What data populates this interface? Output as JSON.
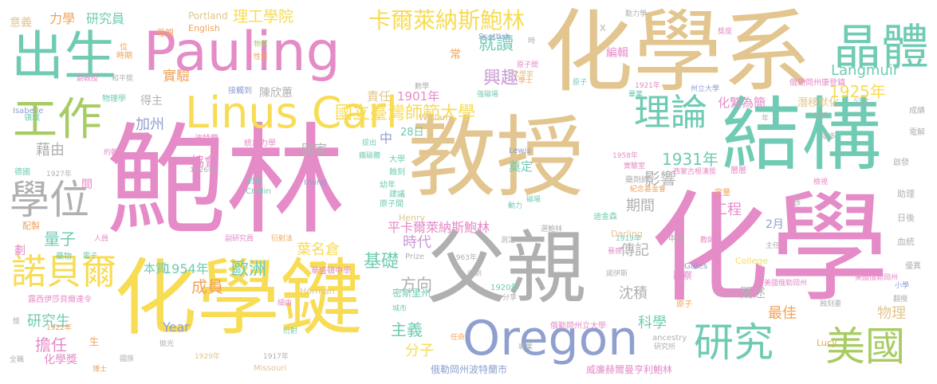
{
  "palette": {
    "pink": "#e58bc7",
    "tan": "#e2c58f",
    "green": "#7fcc8e",
    "yellow": "#f7dc54",
    "gray": "#b0b0b0",
    "blue": "#8fa0cf",
    "teal": "#6fcbb3",
    "lime": "#a8cc63",
    "orange": "#f1a25a",
    "purple": "#c99ad6"
  },
  "words": [
    {
      "text": "鮑林",
      "color": "pink"
    },
    {
      "text": "化學",
      "color": "pink"
    },
    {
      "text": "教授",
      "color": "tan"
    },
    {
      "text": "化學系",
      "color": "tan"
    },
    {
      "text": "結構",
      "color": "teal"
    },
    {
      "text": "父親",
      "color": "gray"
    },
    {
      "text": "化學鍵",
      "color": "yellow"
    },
    {
      "text": "Pauling",
      "color": "pink"
    },
    {
      "text": "Linus Carl",
      "color": "yellow"
    },
    {
      "text": "Oregon",
      "color": "blue"
    },
    {
      "text": "出生",
      "color": "teal"
    },
    {
      "text": "工作",
      "color": "lime"
    },
    {
      "text": "學位",
      "color": "gray"
    },
    {
      "text": "晶體",
      "color": "teal"
    },
    {
      "text": "理論",
      "color": "teal"
    },
    {
      "text": "研究",
      "color": "teal"
    },
    {
      "text": "美國",
      "color": "lime"
    },
    {
      "text": "諾貝爾",
      "color": "yellow"
    },
    {
      "text": "卡爾萊納斯鮑林",
      "color": "yellow"
    },
    {
      "text": "國立臺灣師範大學",
      "color": "yellow"
    },
    {
      "text": "1925年",
      "color": "yellow"
    },
    {
      "text": "1931年",
      "color": "teal"
    },
    {
      "text": "Langmuir",
      "color": "teal"
    },
    {
      "text": "理工學院",
      "color": "yellow"
    },
    {
      "text": "就讀",
      "color": "teal"
    },
    {
      "text": "興趣",
      "color": "purple"
    },
    {
      "text": "歐洲",
      "color": "teal"
    },
    {
      "text": "基礎",
      "color": "teal"
    },
    {
      "text": "分子",
      "color": "yellow"
    },
    {
      "text": "主義",
      "color": "teal"
    },
    {
      "text": "方向",
      "color": "gray"
    },
    {
      "text": "時代",
      "color": "purple"
    },
    {
      "text": "量子",
      "color": "teal"
    },
    {
      "text": "研究生",
      "color": "teal"
    },
    {
      "text": "擔任",
      "color": "pink"
    },
    {
      "text": "成員",
      "color": "orange"
    },
    {
      "text": "1954年",
      "color": "teal"
    },
    {
      "text": "葉名倉",
      "color": "yellow"
    },
    {
      "text": "期間",
      "color": "gray"
    },
    {
      "text": "影響",
      "color": "gray"
    },
    {
      "text": "傳記",
      "color": "gray"
    },
    {
      "text": "工程",
      "color": "pink"
    },
    {
      "text": "科學",
      "color": "teal"
    },
    {
      "text": "沈積",
      "color": "gray"
    },
    {
      "text": "物理",
      "color": "tan"
    },
    {
      "text": "最佳",
      "color": "orange"
    },
    {
      "text": "闡述",
      "color": "gray"
    },
    {
      "text": "化繁為簡",
      "color": "pink"
    },
    {
      "text": "潛移默化",
      "color": "tan"
    },
    {
      "text": "力學",
      "color": "orange"
    },
    {
      "text": "研究員",
      "color": "teal"
    },
    {
      "text": "實驗",
      "color": "orange"
    },
    {
      "text": "加州",
      "color": "blue"
    },
    {
      "text": "協會",
      "color": "pink"
    },
    {
      "text": "陳欣蕙",
      "color": "gray"
    },
    {
      "text": "國家",
      "color": "gray"
    },
    {
      "text": "責任",
      "color": "tan"
    },
    {
      "text": "1901年",
      "color": "pink"
    },
    {
      "text": "28日",
      "color": "teal"
    },
    {
      "text": "平卡爾萊納斯鮑林",
      "color": "pink"
    },
    {
      "text": "Year",
      "color": "blue"
    },
    {
      "text": "本質",
      "color": "teal"
    },
    {
      "text": "化學獎",
      "color": "pink"
    },
    {
      "text": "藉由",
      "color": "gray"
    },
    {
      "text": "中",
      "color": "blue"
    },
    {
      "text": "2月",
      "color": "blue"
    },
    {
      "text": "美國俄勒岡州",
      "color": "pink"
    },
    {
      "text": "俄勒岡州波特蘭市",
      "color": "blue"
    },
    {
      "text": "威廉赫爾曼亨利鮑林",
      "color": "pink"
    },
    {
      "text": "露西伊莎貝爾達令",
      "color": "pink"
    },
    {
      "text": "Portland",
      "color": "tan"
    },
    {
      "text": "English",
      "color": "orange"
    },
    {
      "text": "Scottish",
      "color": "blue"
    },
    {
      "text": "William",
      "color": "tan"
    },
    {
      "text": "Lewis",
      "color": "blue"
    },
    {
      "text": "Irving",
      "color": "blue"
    },
    {
      "text": "Crellin",
      "color": "teal"
    },
    {
      "text": "Henry",
      "color": "tan"
    },
    {
      "text": "Herman",
      "color": "tan"
    },
    {
      "text": "Isabelle",
      "color": "blue"
    },
    {
      "text": "Darling",
      "color": "tan"
    },
    {
      "text": "Prize",
      "color": "gray"
    },
    {
      "text": "College",
      "color": "yellow"
    },
    {
      "text": "State",
      "color": "gray"
    },
    {
      "text": "Gates",
      "color": "blue"
    },
    {
      "text": "Lucy",
      "color": "orange"
    },
    {
      "text": "Missouri",
      "color": "tan"
    },
    {
      "text": "ancestry",
      "color": "gray"
    },
    {
      "text": "意義",
      "color": "tan"
    },
    {
      "text": "位",
      "color": "orange"
    },
    {
      "text": "母親",
      "color": "orange"
    },
    {
      "text": "時期",
      "color": "orange"
    },
    {
      "text": "和平獎",
      "color": "gray"
    },
    {
      "text": "副教授",
      "color": "pink"
    },
    {
      "text": "物理學",
      "color": "teal"
    },
    {
      "text": "得主",
      "color": "gray"
    },
    {
      "text": "領域",
      "color": "teal"
    },
    {
      "text": "約翰",
      "color": "pink"
    },
    {
      "text": "間",
      "color": "pink"
    },
    {
      "text": "德國",
      "color": "teal"
    },
    {
      "text": "1927年",
      "color": "gray"
    },
    {
      "text": "1926年",
      "color": "gray"
    },
    {
      "text": "配製",
      "color": "orange"
    },
    {
      "text": "劃",
      "color": "pink"
    },
    {
      "text": "藥物",
      "color": "teal"
    },
    {
      "text": "電子",
      "color": "teal"
    },
    {
      "text": "人員",
      "color": "pink"
    },
    {
      "text": "副研究員",
      "color": "pink"
    },
    {
      "text": "1922年",
      "color": "orange"
    },
    {
      "text": "生",
      "color": "orange"
    },
    {
      "text": "博士",
      "color": "orange"
    },
    {
      "text": "國族",
      "color": "gray"
    },
    {
      "text": "全職",
      "color": "gray"
    },
    {
      "text": "1929年",
      "color": "tan"
    },
    {
      "text": "1917年",
      "color": "gray"
    },
    {
      "text": "衍射",
      "color": "teal"
    },
    {
      "text": "射線",
      "color": "teal"
    },
    {
      "text": "統計力學",
      "color": "pink"
    },
    {
      "text": "物理化學",
      "color": "pink"
    },
    {
      "text": "波特蘭",
      "color": "pink"
    },
    {
      "text": "接觸到",
      "color": "blue"
    },
    {
      "text": "物質",
      "color": "lime"
    },
    {
      "text": "性質",
      "color": "orange"
    },
    {
      "text": "數學",
      "color": "gray"
    },
    {
      "text": "原子",
      "color": "teal"
    },
    {
      "text": "原子間",
      "color": "pink"
    },
    {
      "text": "強磁場",
      "color": "teal"
    },
    {
      "text": "化學家",
      "color": "tan"
    },
    {
      "text": "學士",
      "color": "orange"
    },
    {
      "text": "畢業",
      "color": "teal"
    },
    {
      "text": "獎座",
      "color": "pink"
    },
    {
      "text": "編輯",
      "color": "pink"
    },
    {
      "text": "常",
      "color": "orange"
    },
    {
      "text": "時",
      "color": "gray"
    },
    {
      "text": "勳力學",
      "color": "gray"
    },
    {
      "text": "1921年",
      "color": "pink"
    },
    {
      "text": "州立大學",
      "color": "blue"
    },
    {
      "text": "俄勒岡州康登鎮",
      "color": "pink"
    },
    {
      "text": "公立",
      "color": "gray"
    },
    {
      "text": "成績",
      "color": "gray"
    },
    {
      "text": "分析",
      "color": "gray"
    },
    {
      "text": "電解",
      "color": "gray"
    },
    {
      "text": "眾多",
      "color": "gray"
    },
    {
      "text": "啟發",
      "color": "gray"
    },
    {
      "text": "檢視",
      "color": "pink"
    },
    {
      "text": "助理",
      "color": "gray"
    },
    {
      "text": "日後",
      "color": "gray"
    },
    {
      "text": "血統",
      "color": "gray"
    },
    {
      "text": "優異",
      "color": "gray"
    },
    {
      "text": "翻攪",
      "color": "gray"
    },
    {
      "text": "主任",
      "color": "gray"
    },
    {
      "text": "小學",
      "color": "blue"
    },
    {
      "text": "年",
      "color": "gray"
    },
    {
      "text": "感",
      "color": "gray"
    },
    {
      "text": "定量",
      "color": "orange"
    },
    {
      "text": "層層",
      "color": "pink"
    },
    {
      "text": "西蒙古根漢獎",
      "color": "pink"
    },
    {
      "text": "紀念基金會",
      "color": "orange"
    },
    {
      "text": "實驗室",
      "color": "pink"
    },
    {
      "text": "藥劑師",
      "color": "gray"
    },
    {
      "text": "1958年",
      "color": "pink"
    },
    {
      "text": "奠定",
      "color": "teal"
    },
    {
      "text": "幼年",
      "color": "teal"
    },
    {
      "text": "建議",
      "color": "teal"
    },
    {
      "text": "原子間",
      "color": "teal"
    },
    {
      "text": "蝕刻",
      "color": "teal"
    },
    {
      "text": "提出",
      "color": "teal"
    },
    {
      "text": "鐵磁體",
      "color": "teal"
    },
    {
      "text": "大學",
      "color": "teal"
    },
    {
      "text": "動力",
      "color": "teal"
    },
    {
      "text": "磁場",
      "color": "teal"
    },
    {
      "text": "迪金森",
      "color": "teal"
    },
    {
      "text": "選鮑林",
      "color": "gray"
    },
    {
      "text": "測定",
      "color": "gray"
    },
    {
      "text": "1963年",
      "color": "gray"
    },
    {
      "text": "收到",
      "color": "gray"
    },
    {
      "text": "1920年",
      "color": "teal"
    },
    {
      "text": "分享",
      "color": "gray"
    },
    {
      "text": "城市",
      "color": "teal"
    },
    {
      "text": "密斯里州",
      "color": "teal"
    },
    {
      "text": "華盛頓中學",
      "color": "pink"
    },
    {
      "text": "細由",
      "color": "pink"
    },
    {
      "text": "任命",
      "color": "orange"
    },
    {
      "text": "專業",
      "color": "gray"
    },
    {
      "text": "俄勒岡州立大學",
      "color": "pink"
    },
    {
      "text": "研究所",
      "color": "gray"
    },
    {
      "text": "教師",
      "color": "pink"
    },
    {
      "text": "申請",
      "color": "gray"
    },
    {
      "text": "1919年",
      "color": "teal"
    },
    {
      "text": "諾伊斯",
      "color": "gray"
    },
    {
      "text": "晉感",
      "color": "pink"
    },
    {
      "text": "觀察",
      "color": "pink"
    },
    {
      "text": "原子",
      "color": "orange"
    },
    {
      "text": "美國俄勒岡州",
      "color": "pink"
    },
    {
      "text": "蝕刻畫",
      "color": "gray"
    },
    {
      "text": "拋光",
      "color": "gray"
    },
    {
      "text": "衍射法",
      "color": "orange"
    },
    {
      "text": "獎",
      "color": "gray"
    },
    {
      "text": "X",
      "color": "gray"
    }
  ]
}
